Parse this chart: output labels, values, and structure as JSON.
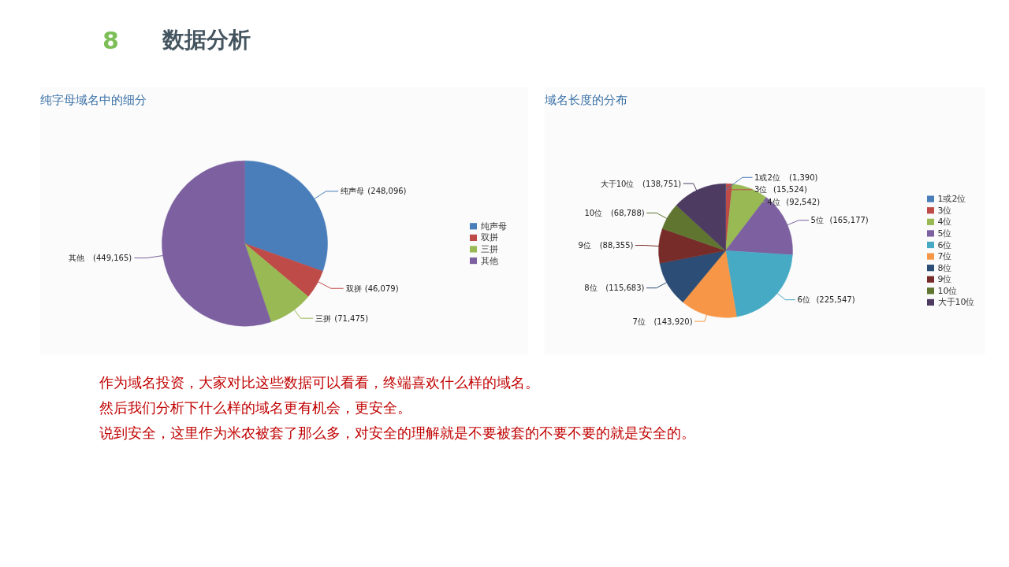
{
  "chart_data": [
    {
      "type": "pie",
      "title": "纯字母域名中的细分",
      "categories": [
        "纯声母",
        "双拼",
        "三拼",
        "其他"
      ],
      "values": [
        248096,
        46079,
        71475,
        449165
      ],
      "colors": [
        "#4a7ebb",
        "#be4b48",
        "#98b954",
        "#7d60a0"
      ],
      "value_labels": [
        "(248,096)",
        "(46,079)",
        "(71,475)",
        "(449,165)"
      ],
      "legend": "right",
      "annotations": [
        "8",
        "数据分析",
        "作为域名投资，大家对比这些数据可以看看，终端喜欢什么样的域名。",
        "然后我们分析下什么样的域名更有机会，更安全。",
        "说到安全，这里作为米农被套了那么多，对安全的理解就是不要被套的不要不要的就是安全的。"
      ]
    },
    {
      "type": "pie",
      "title": "域名长度的分布",
      "categories": [
        "1或2位",
        "3位",
        "4位",
        "5位",
        "6位",
        "7位",
        "8位",
        "9位",
        "10位",
        "大于10位"
      ],
      "values": [
        1390,
        15524,
        92542,
        165177,
        225547,
        143920,
        115683,
        88355,
        68788,
        138751
      ],
      "colors": [
        "#4a7ebb",
        "#be4b48",
        "#98b954",
        "#7d60a0",
        "#46aac5",
        "#f79646",
        "#2c4d75",
        "#772c2a",
        "#5f7530",
        "#4d3b62"
      ],
      "value_labels": [
        "(1,390)",
        "(15,524)",
        "(92,542)",
        "(165,177)",
        "(225,547)",
        "(143,920)",
        "(115,683)",
        "(88,355)",
        "(68,788)",
        "(138,751)"
      ],
      "legend": "right"
    }
  ]
}
